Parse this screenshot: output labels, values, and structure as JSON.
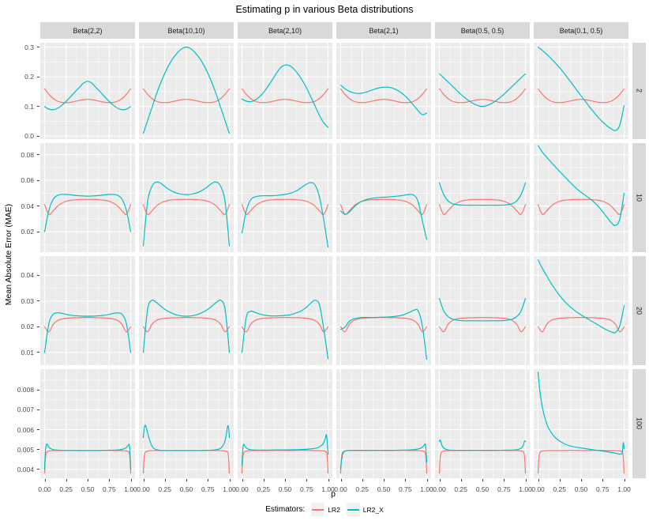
{
  "title": "Estimating p in various Beta distributions",
  "axes": {
    "x_label": "p",
    "y_label": "Mean Absolute Error (MAE)"
  },
  "legend": {
    "title": "Estimators:",
    "entries": [
      {
        "label": "LR2",
        "color": "#F8766D"
      },
      {
        "label": "LR2_X",
        "color": "#00BFC4"
      }
    ]
  },
  "style": {
    "panel_bg": "#EBEBEB",
    "strip_bg": "#D9D9D9",
    "grid_color": "#FFFFFF",
    "tick_label_color": "#4D4D4D",
    "strip_text_color": "#1A1A1A",
    "lr2_color": "#F8766D",
    "lr2_x_color": "#00BFC4"
  },
  "chart_data": {
    "type": "line",
    "title": "Estimating p in various Beta distributions",
    "xlabel": "p",
    "ylabel": "Mean Absolute Error (MAE)",
    "legend_title": "Estimators:",
    "series_names": [
      "LR2",
      "LR2_X"
    ],
    "facet_columns": [
      "Beta(2,2)",
      "Beta(10,10)",
      "Beta(2,10)",
      "Beta(2,1)",
      "Beta(0.5, 0.5)",
      "Beta(0.1, 0.5)"
    ],
    "facet_rows": [
      "2",
      "10",
      "20",
      "100"
    ],
    "x_axis": {
      "range": [
        0,
        1
      ],
      "expanded_range": [
        -0.05,
        1.05
      ],
      "ticks": [
        0,
        0.25,
        0.5,
        0.75,
        1
      ],
      "tick_labels": [
        "0.00",
        "0.25",
        "0.50",
        "0.75",
        "1.00"
      ],
      "minor_ticks": [
        0.125,
        0.375,
        0.625,
        0.875
      ]
    },
    "rows": [
      {
        "facet_row": "2",
        "ylim": [
          -0.01,
          0.315
        ],
        "yticks": [
          0,
          0.1,
          0.2,
          0.3
        ],
        "ytick_labels": [
          "0.0",
          "0.1",
          "0.2",
          "0.3"
        ],
        "x": [
          0,
          0.05,
          0.1,
          0.15,
          0.2,
          0.25,
          0.3,
          0.35,
          0.4,
          0.45,
          0.5,
          0.55,
          0.6,
          0.65,
          0.7,
          0.75,
          0.8,
          0.85,
          0.9,
          0.95,
          1
        ],
        "LR2": [
          0.16,
          0.141,
          0.127,
          0.118,
          0.114,
          0.113,
          0.114,
          0.117,
          0.12,
          0.123,
          0.124,
          0.123,
          0.12,
          0.117,
          0.114,
          0.113,
          0.114,
          0.118,
          0.127,
          0.141,
          0.16
        ],
        "LR2_X": [
          [
            0.1,
            0.091,
            0.089,
            0.094,
            0.104,
            0.117,
            0.132,
            0.148,
            0.163,
            0.178,
            0.185,
            0.178,
            0.163,
            0.148,
            0.132,
            0.117,
            0.104,
            0.094,
            0.089,
            0.091,
            0.1
          ],
          [
            0.01,
            0.052,
            0.096,
            0.139,
            0.178,
            0.212,
            0.241,
            0.264,
            0.282,
            0.295,
            0.3,
            0.295,
            0.282,
            0.264,
            0.241,
            0.212,
            0.178,
            0.139,
            0.096,
            0.052,
            0.01
          ],
          [
            0.125,
            0.118,
            0.116,
            0.121,
            0.132,
            0.147,
            0.167,
            0.189,
            0.212,
            0.231,
            0.24,
            0.238,
            0.227,
            0.21,
            0.188,
            0.162,
            0.132,
            0.101,
            0.07,
            0.045,
            0.03
          ],
          [
            0.172,
            0.16,
            0.151,
            0.146,
            0.144,
            0.145,
            0.149,
            0.154,
            0.159,
            0.163,
            0.165,
            0.165,
            0.162,
            0.156,
            0.147,
            0.135,
            0.12,
            0.103,
            0.086,
            0.072,
            0.078
          ],
          [
            0.21,
            0.197,
            0.183,
            0.169,
            0.155,
            0.141,
            0.129,
            0.118,
            0.109,
            0.103,
            0.1,
            0.103,
            0.109,
            0.118,
            0.129,
            0.141,
            0.155,
            0.169,
            0.183,
            0.197,
            0.21
          ],
          [
            0.3,
            0.289,
            0.276,
            0.262,
            0.247,
            0.231,
            0.213,
            0.194,
            0.175,
            0.155,
            0.136,
            0.117,
            0.098,
            0.08,
            0.063,
            0.048,
            0.035,
            0.025,
            0.019,
            0.038,
            0.103
          ]
        ]
      },
      {
        "facet_row": "10",
        "ylim": [
          0.004,
          0.089
        ],
        "yticks": [
          0.02,
          0.04,
          0.06,
          0.08
        ],
        "ytick_labels": [
          "0.02",
          "0.04",
          "0.06",
          "0.08"
        ],
        "x": [
          0,
          0.05,
          0.1,
          0.15,
          0.2,
          0.25,
          0.3,
          0.35,
          0.4,
          0.45,
          0.5,
          0.55,
          0.6,
          0.65,
          0.7,
          0.75,
          0.8,
          0.85,
          0.9,
          0.95,
          1
        ],
        "LR2": [
          0.041,
          0.0335,
          0.0362,
          0.0398,
          0.0422,
          0.0436,
          0.0444,
          0.0448,
          0.045,
          0.0451,
          0.0451,
          0.0451,
          0.045,
          0.0448,
          0.0444,
          0.0436,
          0.0422,
          0.0398,
          0.0362,
          0.0335,
          0.041
        ],
        "LR2_X": [
          [
            0.02,
            0.0365,
            0.0452,
            0.0482,
            0.049,
            0.049,
            0.0487,
            0.0483,
            0.048,
            0.0478,
            0.0477,
            0.0478,
            0.048,
            0.0483,
            0.0487,
            0.049,
            0.049,
            0.0482,
            0.0452,
            0.0365,
            0.02
          ],
          [
            0.009,
            0.043,
            0.0552,
            0.0586,
            0.0578,
            0.0552,
            0.0528,
            0.051,
            0.0498,
            0.0491,
            0.0489,
            0.0491,
            0.0498,
            0.051,
            0.0528,
            0.0552,
            0.0578,
            0.0586,
            0.0552,
            0.043,
            0.009
          ],
          [
            0.019,
            0.036,
            0.0448,
            0.047,
            0.0478,
            0.048,
            0.048,
            0.048,
            0.0482,
            0.0486,
            0.049,
            0.0497,
            0.0508,
            0.0525,
            0.0548,
            0.057,
            0.0582,
            0.0562,
            0.047,
            0.029,
            0.008
          ],
          [
            0.036,
            0.0335,
            0.0352,
            0.0388,
            0.0418,
            0.0438,
            0.045,
            0.0458,
            0.0463,
            0.0466,
            0.0468,
            0.047,
            0.0473,
            0.0476,
            0.048,
            0.0485,
            0.049,
            0.0484,
            0.0432,
            0.028,
            0.014
          ],
          [
            0.058,
            0.049,
            0.044,
            0.0418,
            0.041,
            0.0407,
            0.0406,
            0.0406,
            0.0406,
            0.0406,
            0.0406,
            0.0406,
            0.0406,
            0.0406,
            0.0406,
            0.0407,
            0.041,
            0.0418,
            0.044,
            0.049,
            0.058
          ],
          [
            0.087,
            0.082,
            0.078,
            0.0742,
            0.0706,
            0.067,
            0.0635,
            0.06,
            0.0566,
            0.0534,
            0.0506,
            0.0482,
            0.0458,
            0.043,
            0.0396,
            0.0356,
            0.0312,
            0.027,
            0.0248,
            0.03,
            0.05
          ]
        ]
      },
      {
        "facet_row": "20",
        "ylim": [
          0.005,
          0.0475
        ],
        "yticks": [
          0.01,
          0.02,
          0.03,
          0.04
        ],
        "ytick_labels": [
          "0.01",
          "0.02",
          "0.03",
          "0.04"
        ],
        "x": [
          0,
          0.05,
          0.1,
          0.15,
          0.2,
          0.25,
          0.3,
          0.35,
          0.4,
          0.45,
          0.5,
          0.55,
          0.6,
          0.65,
          0.7,
          0.75,
          0.8,
          0.85,
          0.9,
          0.95,
          1
        ],
        "LR2": [
          0.02,
          0.018,
          0.0209,
          0.0224,
          0.023,
          0.0233,
          0.0234,
          0.0235,
          0.0235,
          0.0236,
          0.0236,
          0.0236,
          0.0235,
          0.0235,
          0.0234,
          0.0233,
          0.023,
          0.0224,
          0.0209,
          0.018,
          0.02
        ],
        "LR2_X": [
          [
            0.01,
            0.0212,
            0.0248,
            0.0254,
            0.0252,
            0.0248,
            0.0245,
            0.0243,
            0.0242,
            0.0241,
            0.0241,
            0.0241,
            0.0242,
            0.0243,
            0.0245,
            0.0248,
            0.0252,
            0.0254,
            0.0248,
            0.0212,
            0.01
          ],
          [
            0.01,
            0.0267,
            0.0303,
            0.0295,
            0.0281,
            0.0268,
            0.0258,
            0.025,
            0.0245,
            0.0242,
            0.0241,
            0.0242,
            0.0245,
            0.025,
            0.0258,
            0.0268,
            0.0281,
            0.0295,
            0.0303,
            0.0267,
            0.01
          ],
          [
            0.01,
            0.0236,
            0.026,
            0.0256,
            0.025,
            0.0246,
            0.0243,
            0.0242,
            0.0242,
            0.0243,
            0.0244,
            0.0246,
            0.025,
            0.0256,
            0.0264,
            0.0276,
            0.0292,
            0.0303,
            0.0285,
            0.019,
            0.0075
          ],
          [
            0.019,
            0.0198,
            0.0221,
            0.023,
            0.0234,
            0.0236,
            0.0236,
            0.0236,
            0.0236,
            0.0237,
            0.0237,
            0.0238,
            0.0239,
            0.0241,
            0.0244,
            0.0249,
            0.0256,
            0.0264,
            0.0262,
            0.02,
            0.0073
          ],
          [
            0.031,
            0.0262,
            0.024,
            0.023,
            0.0226,
            0.0224,
            0.0223,
            0.0223,
            0.0223,
            0.0223,
            0.0223,
            0.0223,
            0.0223,
            0.0223,
            0.0223,
            0.0224,
            0.0226,
            0.023,
            0.024,
            0.0262,
            0.031
          ],
          [
            0.046,
            0.0428,
            0.0398,
            0.037,
            0.0345,
            0.0322,
            0.0302,
            0.0285,
            0.027,
            0.0257,
            0.0246,
            0.0236,
            0.0226,
            0.0216,
            0.0206,
            0.0196,
            0.0187,
            0.018,
            0.0178,
            0.0205,
            0.0282
          ]
        ]
      },
      {
        "facet_row": "100",
        "ylim": [
          0.00355,
          0.00905
        ],
        "yticks": [
          0.004,
          0.005,
          0.006,
          0.007,
          0.008
        ],
        "ytick_labels": [
          "0.004",
          "0.005",
          "0.006",
          "0.007",
          "0.008"
        ],
        "x": [
          0,
          0.01,
          0.02,
          0.03,
          0.05,
          0.08,
          0.12,
          0.2,
          0.3,
          0.4,
          0.5,
          0.6,
          0.7,
          0.8,
          0.88,
          0.92,
          0.95,
          0.97,
          0.98,
          0.99,
          1
        ],
        "LR2": [
          0.0038,
          0.0046,
          0.00482,
          0.00488,
          0.00492,
          0.00494,
          0.00495,
          0.00495,
          0.00495,
          0.00496,
          0.00495,
          0.00495,
          0.00496,
          0.00495,
          0.00495,
          0.00494,
          0.00493,
          0.0049,
          0.00486,
          0.00462,
          0.0038
        ],
        "LR2_X": [
          [
            0.004,
            0.00492,
            0.00522,
            0.00528,
            0.00512,
            0.00502,
            0.00498,
            0.00496,
            0.00495,
            0.00495,
            0.00495,
            0.00495,
            0.00496,
            0.00497,
            0.00499,
            0.00503,
            0.0051,
            0.0052,
            0.00525,
            0.005,
            0.004
          ],
          [
            0.0056,
            0.00605,
            0.00622,
            0.00618,
            0.00585,
            0.0054,
            0.00506,
            0.00496,
            0.00495,
            0.00495,
            0.00495,
            0.00495,
            0.00495,
            0.00497,
            0.00502,
            0.00516,
            0.00545,
            0.00592,
            0.00618,
            0.00612,
            0.0056
          ],
          [
            0.0042,
            0.005,
            0.00525,
            0.0052,
            0.00508,
            0.00501,
            0.00498,
            0.00497,
            0.00497,
            0.00498,
            0.00498,
            0.00499,
            0.005,
            0.00503,
            0.00509,
            0.00519,
            0.00535,
            0.00558,
            0.00575,
            0.0054,
            0.00475
          ],
          [
            0.004,
            0.00442,
            0.00468,
            0.00483,
            0.00492,
            0.00495,
            0.00496,
            0.00496,
            0.00496,
            0.00496,
            0.00496,
            0.00496,
            0.00497,
            0.00498,
            0.00501,
            0.00505,
            0.00512,
            0.00521,
            0.00528,
            0.005,
            0.00435
          ],
          [
            0.0054,
            0.00548,
            0.00536,
            0.00521,
            0.00508,
            0.005,
            0.00497,
            0.00496,
            0.00496,
            0.00496,
            0.00496,
            0.00496,
            0.00496,
            0.00497,
            0.00498,
            0.00501,
            0.00507,
            0.00517,
            0.00528,
            0.00543,
            0.0054
          ],
          [
            0.0089,
            0.0084,
            0.008,
            0.00768,
            0.00715,
            0.0066,
            0.0061,
            0.0056,
            0.0053,
            0.00515,
            0.00508,
            0.00501,
            0.00495,
            0.00489,
            0.00483,
            0.00479,
            0.00477,
            0.00478,
            0.0049,
            0.00535,
            0.00505
          ]
        ]
      }
    ]
  }
}
